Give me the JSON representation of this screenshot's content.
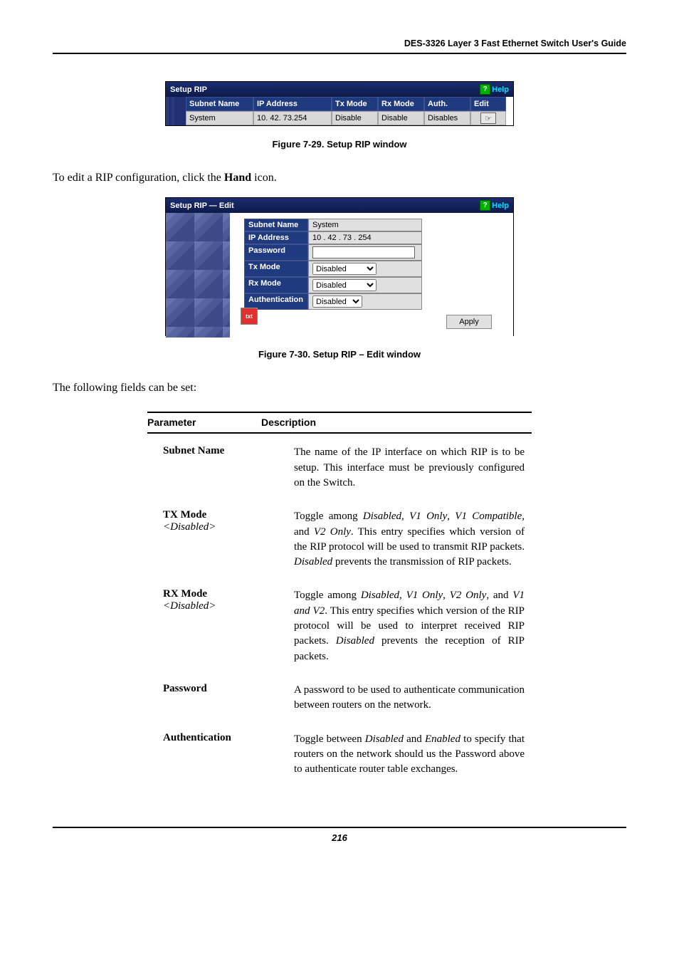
{
  "header": {
    "title": "DES-3326 Layer 3 Fast Ethernet Switch User's Guide"
  },
  "fig1": {
    "window_title": "Setup RIP",
    "help_label": "Help",
    "columns": [
      "Subnet Name",
      "IP Address",
      "Tx Mode",
      "Rx Mode",
      "Auth.",
      "Edit"
    ],
    "row": {
      "subnet_name": "System",
      "ip_address": "10. 42. 73.254",
      "tx_mode": "Disable",
      "rx_mode": "Disable",
      "auth": "Disables"
    }
  },
  "caption1": "Figure 7-29.  Setup RIP window",
  "para1_a": "To edit a RIP configuration, click the ",
  "para1_b_bold": "Hand",
  "para1_c": " icon.",
  "fig2": {
    "window_title": "Setup RIP — Edit",
    "help_label": "Help",
    "rows": {
      "subnet_name_label": "Subnet Name",
      "subnet_name_value": "System",
      "ip_label": "IP Address",
      "ip_value": "10 . 42 . 73 . 254",
      "password_label": "Password",
      "tx_label": "Tx Mode",
      "tx_value": "Disabled",
      "rx_label": "Rx Mode",
      "rx_value": "Disabled",
      "auth_label": "Authentication",
      "auth_value": "Disabled"
    },
    "apply_label": "Apply"
  },
  "caption2": "Figure 7-30.  Setup RIP – Edit window",
  "para2": "The following fields can be set:",
  "table": {
    "head_param": "Parameter",
    "head_desc": "Description",
    "rows": [
      {
        "name": "Subnet Name",
        "opt": "",
        "desc_parts": [
          {
            "t": "The name of the IP interface on which RIP is to be setup. This interface must be previously configured on the Switch.",
            "i": false
          }
        ]
      },
      {
        "name": "TX Mode",
        "opt": "<Disabled>",
        "desc_parts": [
          {
            "t": "Toggle among ",
            "i": false
          },
          {
            "t": "Disabled",
            "i": true
          },
          {
            "t": ", ",
            "i": false
          },
          {
            "t": "V1 Only",
            "i": true
          },
          {
            "t": ", ",
            "i": false
          },
          {
            "t": "V1 Compatible",
            "i": true
          },
          {
            "t": ", and ",
            "i": false
          },
          {
            "t": "V2 Only",
            "i": true
          },
          {
            "t": ". This entry specifies which version of the RIP protocol will be used to transmit RIP packets. ",
            "i": false
          },
          {
            "t": "Disabled",
            "i": true
          },
          {
            "t": " prevents the transmission of RIP packets.",
            "i": false
          }
        ]
      },
      {
        "name": "RX Mode",
        "opt": "<Disabled>",
        "desc_parts": [
          {
            "t": "Toggle among ",
            "i": false
          },
          {
            "t": "Disabled",
            "i": true
          },
          {
            "t": ", ",
            "i": false
          },
          {
            "t": "V1 Only",
            "i": true
          },
          {
            "t": ", ",
            "i": false
          },
          {
            "t": "V2 Only",
            "i": true
          },
          {
            "t": ", and ",
            "i": false
          },
          {
            "t": "V1 and V2",
            "i": true
          },
          {
            "t": ". This entry specifies which version of the RIP protocol will be used to interpret received RIP packets. ",
            "i": false
          },
          {
            "t": "Disabled",
            "i": true
          },
          {
            "t": " prevents the reception of RIP packets.",
            "i": false
          }
        ]
      },
      {
        "name": "Password",
        "opt": "",
        "desc_parts": [
          {
            "t": "A password to be used to authenticate communication between routers on the network.",
            "i": false
          }
        ]
      },
      {
        "name": "Authentication",
        "opt": "",
        "desc_parts": [
          {
            "t": "Toggle between ",
            "i": false
          },
          {
            "t": "Disabled",
            "i": true
          },
          {
            "t": " and ",
            "i": false
          },
          {
            "t": "Enabled",
            "i": true
          },
          {
            "t": " to specify that routers on the network should us the Password above to authenticate router table exchanges.",
            "i": false
          }
        ]
      }
    ]
  },
  "page_number": "216",
  "colors": {
    "navy": "#102060",
    "navy_light": "#203a80",
    "cell_bg": "#d8d8d8",
    "help_cyan": "#00e0ff",
    "help_green": "#00b000"
  }
}
